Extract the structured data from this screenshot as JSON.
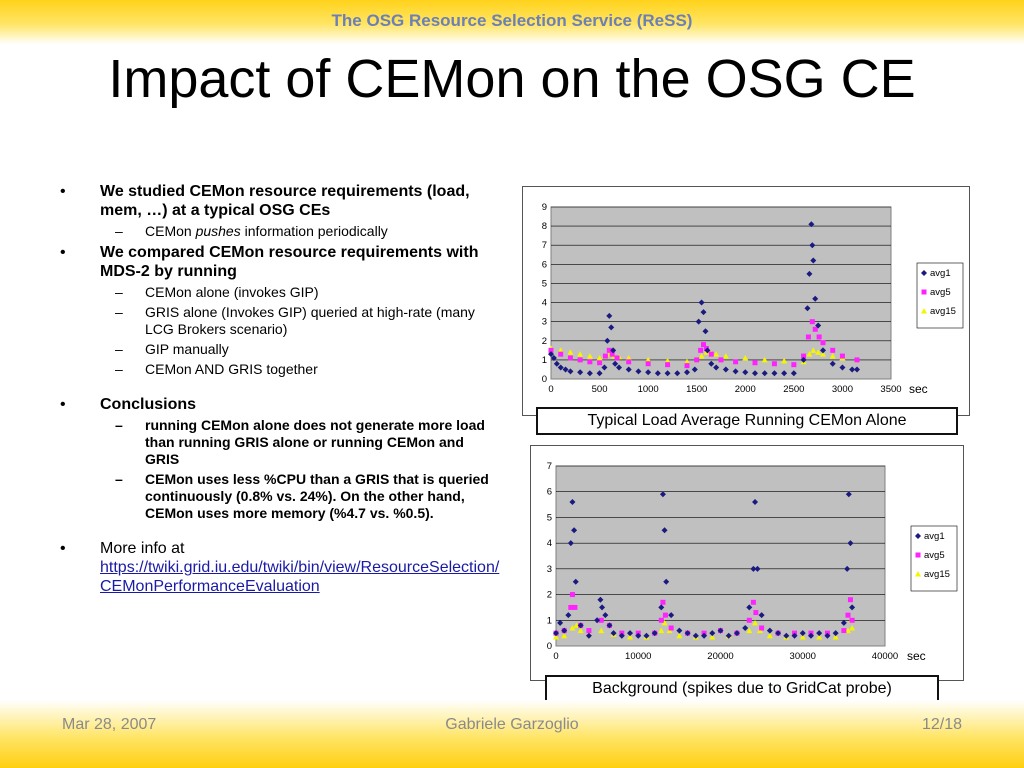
{
  "header": {
    "title": "The OSG Resource Selection Service (ReSS)"
  },
  "slide": {
    "title": "Impact of CEMon on the OSG CE"
  },
  "bullets": {
    "b1": "We studied CEMon resource requirements (load, mem, …) at a typical OSG CEs",
    "b1_sub1_pre": "CEMon ",
    "b1_sub1_em": "pushes",
    "b1_sub1_post": " information periodically",
    "b2": "We compared CEMon resource requirements with MDS-2 by running",
    "b2_subs": [
      "CEMon alone (invokes GIP)",
      "GRIS alone (Invokes GIP) queried at high-rate (many LCG Brokers scenario)",
      "GIP manually",
      "CEMon AND GRIS together"
    ],
    "b3": "Conclusions",
    "b3_subs": [
      "running CEMon alone does not generate more load than running GRIS alone or running CEMon and GRIS",
      "CEMon uses less %CPU than a GRIS that is queried continuously (0.8% vs. 24%). On the other hand, CEMon uses more memory (%4.7 vs. %0.5)."
    ],
    "b4": "More info at",
    "b4_link": "https://twiki.grid.iu.edu/twiki/bin/view/ResourceSelection/CEMonPerformanceEvaluation"
  },
  "chart_data": [
    {
      "type": "scatter",
      "caption": "Typical Load Average Running CEMon Alone",
      "xunit": "sec",
      "xlim": [
        0,
        3500
      ],
      "ylim": [
        0,
        9
      ],
      "xticks": [
        0,
        500,
        1000,
        1500,
        2000,
        2500,
        3000,
        3500
      ],
      "yticks": [
        0,
        1,
        2,
        3,
        4,
        5,
        6,
        7,
        8,
        9
      ],
      "legend_position": "right",
      "series": [
        {
          "name": "avg1",
          "color": "#1a1a80",
          "marker": "diamond",
          "x": [
            0,
            30,
            60,
            100,
            150,
            200,
            300,
            400,
            500,
            550,
            580,
            600,
            620,
            640,
            660,
            700,
            800,
            900,
            1000,
            1100,
            1200,
            1300,
            1400,
            1480,
            1520,
            1550,
            1570,
            1590,
            1610,
            1650,
            1700,
            1800,
            1900,
            2000,
            2100,
            2200,
            2300,
            2400,
            2500,
            2600,
            2640,
            2660,
            2680,
            2690,
            2700,
            2720,
            2750,
            2800,
            2900,
            3000,
            3100,
            3150
          ],
          "y": [
            1.3,
            1.1,
            0.8,
            0.6,
            0.5,
            0.4,
            0.35,
            0.3,
            0.3,
            0.6,
            2.0,
            3.3,
            2.7,
            1.5,
            0.8,
            0.6,
            0.5,
            0.4,
            0.35,
            0.3,
            0.3,
            0.3,
            0.35,
            0.5,
            3.0,
            4.0,
            3.5,
            2.5,
            1.5,
            0.8,
            0.6,
            0.5,
            0.4,
            0.35,
            0.3,
            0.3,
            0.3,
            0.3,
            0.3,
            1.0,
            3.7,
            5.5,
            8.1,
            7.0,
            6.2,
            4.2,
            2.8,
            1.5,
            0.8,
            0.6,
            0.5,
            0.5
          ]
        },
        {
          "name": "avg5",
          "color": "#ff22ff",
          "marker": "square",
          "x": [
            0,
            100,
            200,
            300,
            400,
            500,
            560,
            600,
            630,
            680,
            800,
            1000,
            1200,
            1400,
            1500,
            1540,
            1570,
            1600,
            1650,
            1750,
            1900,
            2100,
            2300,
            2500,
            2600,
            2650,
            2690,
            2720,
            2760,
            2800,
            2900,
            3000,
            3150
          ],
          "y": [
            1.5,
            1.3,
            1.1,
            1.0,
            0.9,
            0.85,
            1.2,
            1.5,
            1.3,
            1.1,
            0.9,
            0.8,
            0.75,
            0.7,
            1.0,
            1.5,
            1.8,
            1.6,
            1.3,
            1.0,
            0.9,
            0.85,
            0.8,
            0.75,
            1.2,
            2.2,
            3.0,
            2.6,
            2.2,
            1.9,
            1.5,
            1.2,
            1.0
          ]
        },
        {
          "name": "avg15",
          "color": "#f5f500",
          "marker": "triangle",
          "x": [
            0,
            100,
            200,
            300,
            400,
            500,
            560,
            600,
            650,
            700,
            800,
            1000,
            1200,
            1400,
            1500,
            1550,
            1600,
            1650,
            1700,
            1800,
            2000,
            2200,
            2400,
            2600,
            2660,
            2700,
            2750,
            2800,
            2900,
            3000,
            3150
          ],
          "y": [
            1.6,
            1.5,
            1.4,
            1.3,
            1.2,
            1.1,
            1.2,
            1.3,
            1.2,
            1.15,
            1.1,
            1.0,
            0.95,
            0.9,
            1.0,
            1.2,
            1.4,
            1.35,
            1.3,
            1.2,
            1.1,
            1.0,
            0.95,
            0.9,
            1.3,
            1.5,
            1.4,
            1.3,
            1.2,
            1.1,
            1.0
          ]
        }
      ]
    },
    {
      "type": "scatter",
      "caption": "Background (spikes due to GridCat probe)",
      "xunit": "sec",
      "xlim": [
        0,
        40000
      ],
      "ylim": [
        0,
        7
      ],
      "xticks": [
        0,
        10000,
        20000,
        30000,
        40000
      ],
      "yticks": [
        0,
        1,
        2,
        3,
        4,
        5,
        6,
        7
      ],
      "legend_position": "right",
      "series": [
        {
          "name": "avg1",
          "color": "#1a1a80",
          "marker": "diamond",
          "x": [
            0,
            500,
            1000,
            1500,
            1800,
            2000,
            2200,
            2400,
            3000,
            4000,
            5000,
            5400,
            5600,
            6000,
            6500,
            7000,
            8000,
            9000,
            10000,
            11000,
            12000,
            12800,
            13000,
            13200,
            13400,
            14000,
            15000,
            16000,
            17000,
            18000,
            19000,
            20000,
            21000,
            22000,
            23000,
            23500,
            24000,
            24200,
            24500,
            25000,
            26000,
            27000,
            28000,
            29000,
            30000,
            31000,
            32000,
            33000,
            34000,
            35000,
            35400,
            35600,
            35800,
            36000
          ],
          "y": [
            0.5,
            0.9,
            0.6,
            1.2,
            4.0,
            5.6,
            4.5,
            2.5,
            0.8,
            0.4,
            1.0,
            1.8,
            1.5,
            1.2,
            0.8,
            0.5,
            0.4,
            0.5,
            0.4,
            0.4,
            0.5,
            1.5,
            5.9,
            4.5,
            2.5,
            1.2,
            0.6,
            0.5,
            0.4,
            0.4,
            0.5,
            0.6,
            0.4,
            0.5,
            0.7,
            1.5,
            3.0,
            5.6,
            3.0,
            1.2,
            0.6,
            0.5,
            0.4,
            0.4,
            0.5,
            0.4,
            0.5,
            0.4,
            0.5,
            0.9,
            3.0,
            5.9,
            4.0,
            1.5
          ]
        },
        {
          "name": "avg5",
          "color": "#ff22ff",
          "marker": "square",
          "x": [
            0,
            1000,
            1800,
            2000,
            2300,
            3000,
            4000,
            5500,
            6500,
            8000,
            10000,
            12000,
            12800,
            13000,
            13300,
            14000,
            16000,
            18000,
            20000,
            22000,
            23500,
            24000,
            24300,
            25000,
            27000,
            29000,
            31000,
            33000,
            35000,
            35500,
            35800,
            36000
          ],
          "y": [
            0.5,
            0.6,
            1.5,
            2.0,
            1.5,
            0.8,
            0.6,
            1.0,
            0.8,
            0.5,
            0.5,
            0.5,
            1.0,
            1.7,
            1.2,
            0.7,
            0.5,
            0.5,
            0.6,
            0.5,
            1.0,
            1.7,
            1.3,
            0.7,
            0.5,
            0.5,
            0.5,
            0.5,
            0.6,
            1.2,
            1.8,
            1.0
          ]
        },
        {
          "name": "avg15",
          "color": "#f5f500",
          "marker": "triangle",
          "x": [
            0,
            1000,
            2000,
            2500,
            3000,
            4000,
            5500,
            7000,
            9000,
            11000,
            12800,
            13200,
            13800,
            15000,
            17000,
            19000,
            21000,
            23500,
            24200,
            24800,
            26000,
            28000,
            30000,
            32000,
            34000,
            35500,
            35900,
            36000
          ],
          "y": [
            0.35,
            0.4,
            0.7,
            0.8,
            0.6,
            0.45,
            0.6,
            0.45,
            0.35,
            0.35,
            0.6,
            0.9,
            0.6,
            0.4,
            0.35,
            0.35,
            0.4,
            0.6,
            0.9,
            0.6,
            0.4,
            0.35,
            0.35,
            0.35,
            0.35,
            0.6,
            1.0,
            0.7
          ]
        }
      ]
    }
  ],
  "footer": {
    "date": "Mar 28, 2007",
    "author": "Gabriele Garzoglio",
    "page": "12/18"
  }
}
